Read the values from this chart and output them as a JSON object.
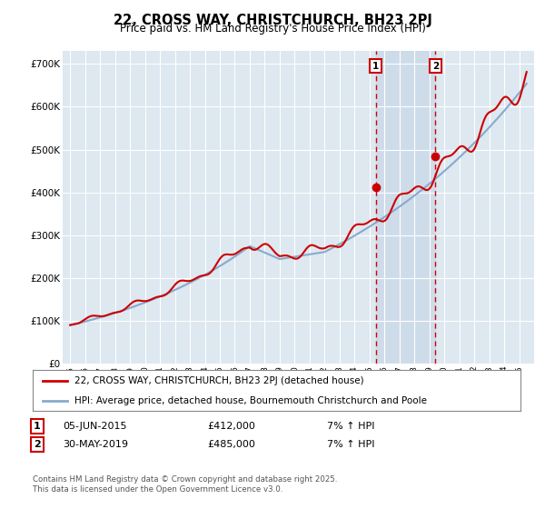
{
  "title": "22, CROSS WAY, CHRISTCHURCH, BH23 2PJ",
  "subtitle": "Price paid vs. HM Land Registry's House Price Index (HPI)",
  "ytick_values": [
    0,
    100000,
    200000,
    300000,
    400000,
    500000,
    600000,
    700000
  ],
  "ytick_labels": [
    "£0",
    "£100K",
    "£200K",
    "£300K",
    "£400K",
    "£500K",
    "£600K",
    "£700K"
  ],
  "ylim": [
    0,
    730000
  ],
  "xlim_min": 1994.5,
  "xlim_max": 2026.0,
  "legend_line1": "22, CROSS WAY, CHRISTCHURCH, BH23 2PJ (detached house)",
  "legend_line2": "HPI: Average price, detached house, Bournemouth Christchurch and Poole",
  "annotation1_label": "1",
  "annotation1_date": "05-JUN-2015",
  "annotation1_price": "£412,000",
  "annotation1_hpi": "7% ↑ HPI",
  "annotation2_label": "2",
  "annotation2_date": "30-MAY-2019",
  "annotation2_price": "£485,000",
  "annotation2_hpi": "7% ↑ HPI",
  "footnote": "Contains HM Land Registry data © Crown copyright and database right 2025.\nThis data is licensed under the Open Government Licence v3.0.",
  "price_color": "#cc0000",
  "hpi_color": "#88aacc",
  "vline_color": "#cc0000",
  "marker1_x": 2015.42,
  "marker2_x": 2019.41,
  "sale1_y": 412000,
  "sale2_y": 485000,
  "background_color": "#ffffff",
  "plot_bg_color": "#dde8f0",
  "grid_color": "#ffffff",
  "span_color": "#c8d8e8",
  "title_fontsize": 10.5,
  "subtitle_fontsize": 8.5
}
